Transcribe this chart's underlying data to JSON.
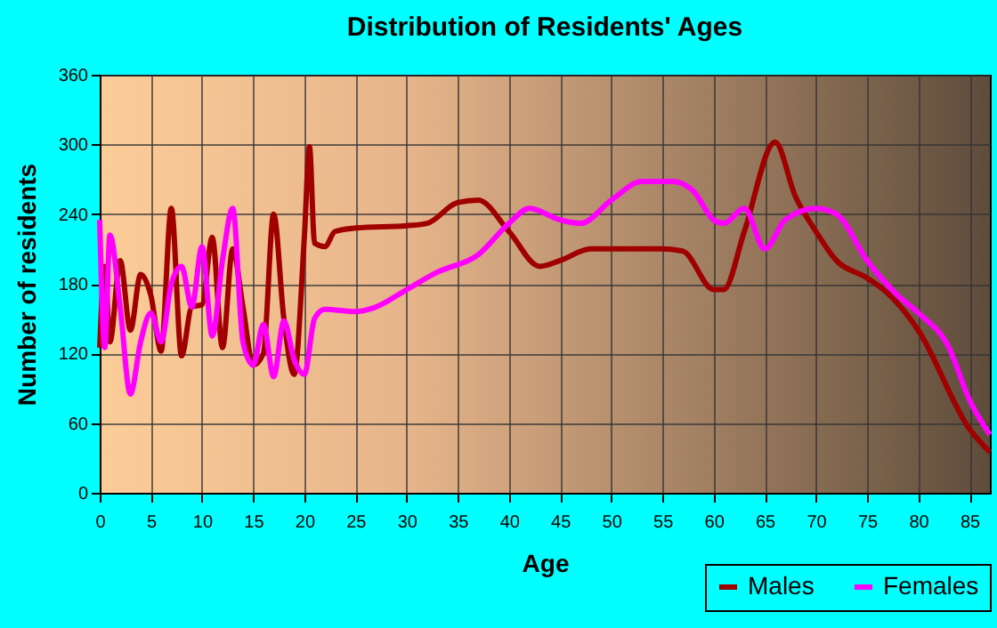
{
  "chart_data": {
    "type": "line",
    "title": "Distribution of Residents' Ages",
    "xlabel": "Age",
    "ylabel": "Number of residents",
    "xlim": [
      0,
      87
    ],
    "xticks": [
      0,
      5,
      10,
      15,
      20,
      25,
      30,
      35,
      40,
      45,
      50,
      55,
      60,
      65,
      70,
      75,
      80,
      85
    ],
    "ylim": [
      0,
      360
    ],
    "yticks": [
      0,
      60,
      120,
      180,
      240,
      300,
      360
    ],
    "grid": true,
    "legend": "bottom right",
    "marker": "none",
    "line_style": "solid",
    "series": [
      {
        "name": "Males",
        "color": "#a00000",
        "x": [
          0,
          0.5,
          1,
          2,
          3,
          4,
          5,
          6,
          7,
          8,
          9,
          10,
          11,
          12,
          13,
          14,
          15,
          16,
          17,
          18,
          19,
          20,
          20.5,
          21,
          22,
          23,
          25,
          30,
          32,
          35,
          37,
          40,
          43,
          45,
          48,
          50,
          55,
          57,
          60,
          61,
          63,
          66,
          68,
          70,
          72,
          75,
          77,
          80,
          85,
          87
        ],
        "values": [
          125,
          195,
          130,
          200,
          140,
          188,
          170,
          122,
          245,
          118,
          160,
          162,
          220,
          125,
          210,
          160,
          110,
          120,
          240,
          150,
          102,
          220,
          298,
          215,
          212,
          225,
          228,
          230,
          232,
          250,
          252,
          225,
          195,
          200,
          210,
          210,
          210,
          208,
          175,
          175,
          225,
          302,
          255,
          225,
          200,
          185,
          172,
          140,
          55,
          35
        ]
      },
      {
        "name": "Females",
        "color": "#ff00ff",
        "x": [
          0,
          0.5,
          1,
          2,
          3,
          4,
          5,
          6,
          7,
          8,
          9,
          10,
          11,
          12,
          13,
          14,
          15,
          16,
          17,
          18,
          19,
          20,
          21,
          22,
          25,
          27,
          30,
          33,
          37,
          40,
          42,
          45,
          47,
          50,
          53,
          56,
          58,
          60,
          61,
          63,
          65,
          67,
          70,
          72,
          75,
          78,
          80,
          83,
          85,
          87
        ],
        "values": [
          235,
          125,
          222,
          160,
          85,
          130,
          155,
          130,
          180,
          195,
          160,
          212,
          135,
          200,
          245,
          130,
          110,
          145,
          100,
          148,
          115,
          102,
          150,
          158,
          156,
          160,
          175,
          190,
          205,
          232,
          245,
          235,
          232,
          252,
          268,
          268,
          260,
          235,
          232,
          245,
          210,
          235,
          245,
          240,
          200,
          170,
          155,
          125,
          80,
          50
        ]
      }
    ]
  }
}
